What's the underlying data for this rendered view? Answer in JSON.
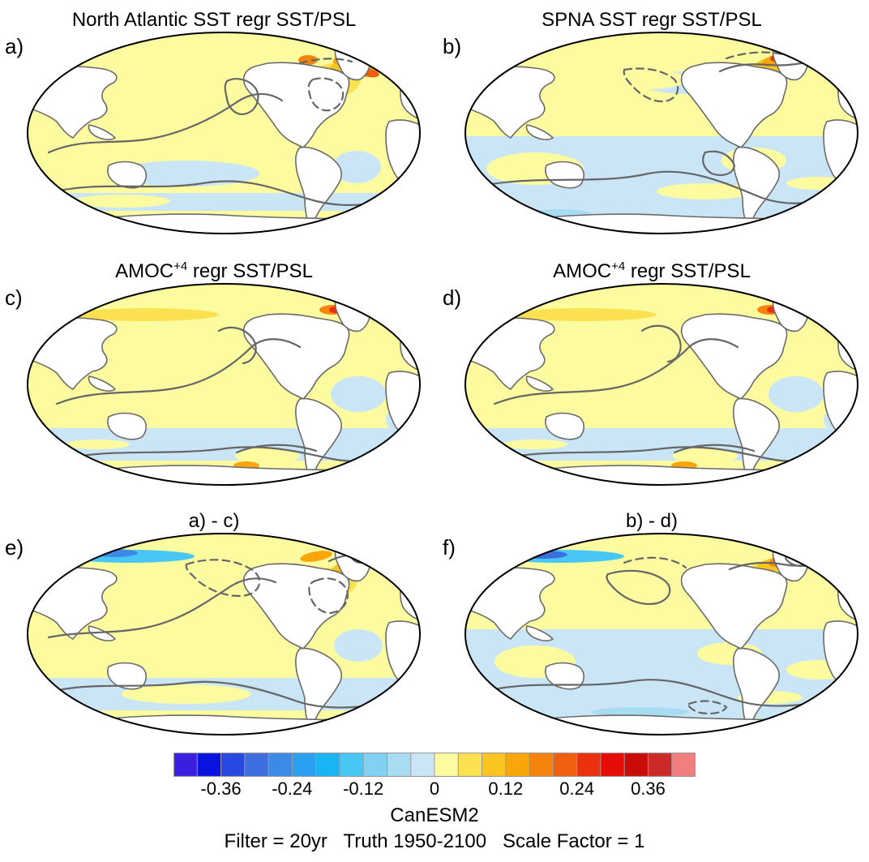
{
  "panels": [
    {
      "letter": "a)",
      "title_main": "North Atlantic SST regr SST/PSL",
      "title_sup": "",
      "title_rest": ""
    },
    {
      "letter": "b)",
      "title_main": "SPNA SST regr SST/PSL",
      "title_sup": "",
      "title_rest": ""
    },
    {
      "letter": "c)",
      "title_main": "AMOC",
      "title_sup": "+4",
      "title_rest": " regr SST/PSL"
    },
    {
      "letter": "d)",
      "title_main": "AMOC",
      "title_sup": "+4",
      "title_rest": " regr SST/PSL"
    },
    {
      "letter": "e)",
      "title_main": "a) - c)",
      "title_sup": "",
      "title_rest": ""
    },
    {
      "letter": "f)",
      "title_main": "b) - d)",
      "title_sup": "",
      "title_rest": ""
    }
  ],
  "colorbar": {
    "colors": [
      "#3a1fe0",
      "#0a14e0",
      "#2848e0",
      "#3c6ee0",
      "#3c8ae8",
      "#2aa0ee",
      "#18b4f4",
      "#48c6f4",
      "#82d0f2",
      "#a8dcf2",
      "#cae6f6",
      "#fdfba0",
      "#fbe150",
      "#fbc41e",
      "#f9a60a",
      "#f5840e",
      "#f05e10",
      "#ea320e",
      "#e60c08",
      "#ca0c08",
      "#cc2a28",
      "#f27e7e"
    ],
    "ticks": [
      "-0.36",
      "-0.24",
      "-0.12",
      "0",
      "0.12",
      "0.24",
      "0.36"
    ]
  },
  "model": "CanESM2",
  "footer": "Filter = 20yr   Truth 1950-2100   Scale Factor = 1"
}
